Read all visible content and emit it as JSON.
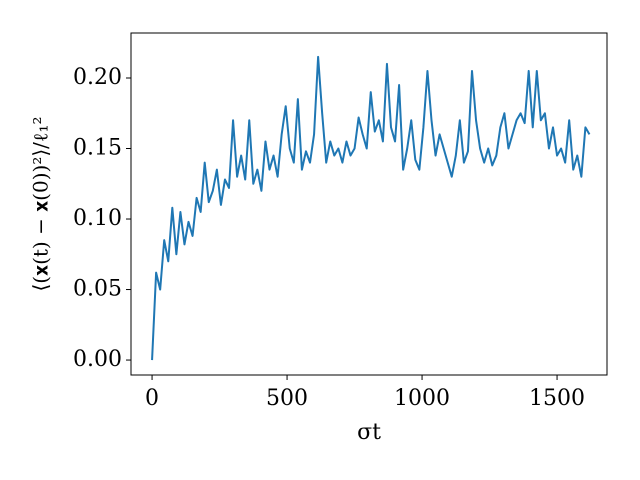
{
  "chart_data": {
    "type": "line",
    "xlabel": "σt",
    "ylabel": "⟨(𝐱(t) − 𝐱(0))²⟩/ℓ₁²",
    "x": [
      0,
      15,
      30,
      45,
      60,
      75,
      90,
      105,
      120,
      135,
      150,
      165,
      180,
      195,
      210,
      225,
      240,
      255,
      270,
      285,
      300,
      315,
      330,
      345,
      360,
      375,
      390,
      405,
      420,
      435,
      450,
      465,
      480,
      495,
      510,
      525,
      540,
      555,
      570,
      585,
      600,
      615,
      630,
      645,
      660,
      675,
      690,
      705,
      720,
      735,
      750,
      765,
      780,
      795,
      810,
      825,
      840,
      855,
      870,
      885,
      900,
      915,
      930,
      945,
      960,
      975,
      990,
      1005,
      1020,
      1035,
      1050,
      1065,
      1080,
      1095,
      1110,
      1125,
      1140,
      1155,
      1170,
      1185,
      1200,
      1215,
      1230,
      1245,
      1260,
      1275,
      1290,
      1305,
      1320,
      1335,
      1350,
      1365,
      1380,
      1395,
      1410,
      1425,
      1440,
      1455,
      1470,
      1485,
      1500,
      1515,
      1530,
      1545,
      1560,
      1575,
      1590,
      1605,
      1620
    ],
    "series": [
      {
        "color": "#1f77b4",
        "values": [
          0.0,
          0.062,
          0.05,
          0.085,
          0.07,
          0.108,
          0.075,
          0.105,
          0.082,
          0.098,
          0.088,
          0.115,
          0.105,
          0.14,
          0.112,
          0.12,
          0.135,
          0.11,
          0.128,
          0.122,
          0.17,
          0.13,
          0.145,
          0.128,
          0.17,
          0.125,
          0.135,
          0.12,
          0.155,
          0.135,
          0.145,
          0.13,
          0.16,
          0.18,
          0.15,
          0.14,
          0.185,
          0.135,
          0.148,
          0.14,
          0.16,
          0.215,
          0.175,
          0.14,
          0.155,
          0.145,
          0.15,
          0.14,
          0.155,
          0.145,
          0.15,
          0.172,
          0.16,
          0.15,
          0.19,
          0.162,
          0.17,
          0.155,
          0.21,
          0.165,
          0.155,
          0.195,
          0.135,
          0.15,
          0.17,
          0.142,
          0.135,
          0.165,
          0.205,
          0.17,
          0.145,
          0.16,
          0.15,
          0.14,
          0.13,
          0.145,
          0.17,
          0.14,
          0.148,
          0.205,
          0.17,
          0.15,
          0.14,
          0.15,
          0.138,
          0.145,
          0.165,
          0.175,
          0.15,
          0.16,
          0.17,
          0.175,
          0.168,
          0.205,
          0.165,
          0.205,
          0.17,
          0.175,
          0.15,
          0.165,
          0.145,
          0.15,
          0.14,
          0.17,
          0.135,
          0.145,
          0.13,
          0.165,
          0.16
        ]
      }
    ],
    "xlim": [
      -78,
      1685
    ],
    "ylim": [
      -0.0106,
      0.2319
    ],
    "xticks": [
      0,
      500,
      1000,
      1500
    ],
    "yticks": [
      {
        "value": 0,
        "label": "0.00"
      },
      {
        "value": 0.05,
        "label": "0.05"
      },
      {
        "value": 0.1,
        "label": "0.10"
      },
      {
        "value": 0.15,
        "label": "0.15"
      },
      {
        "value": 0.2,
        "label": "0.20"
      }
    ]
  }
}
